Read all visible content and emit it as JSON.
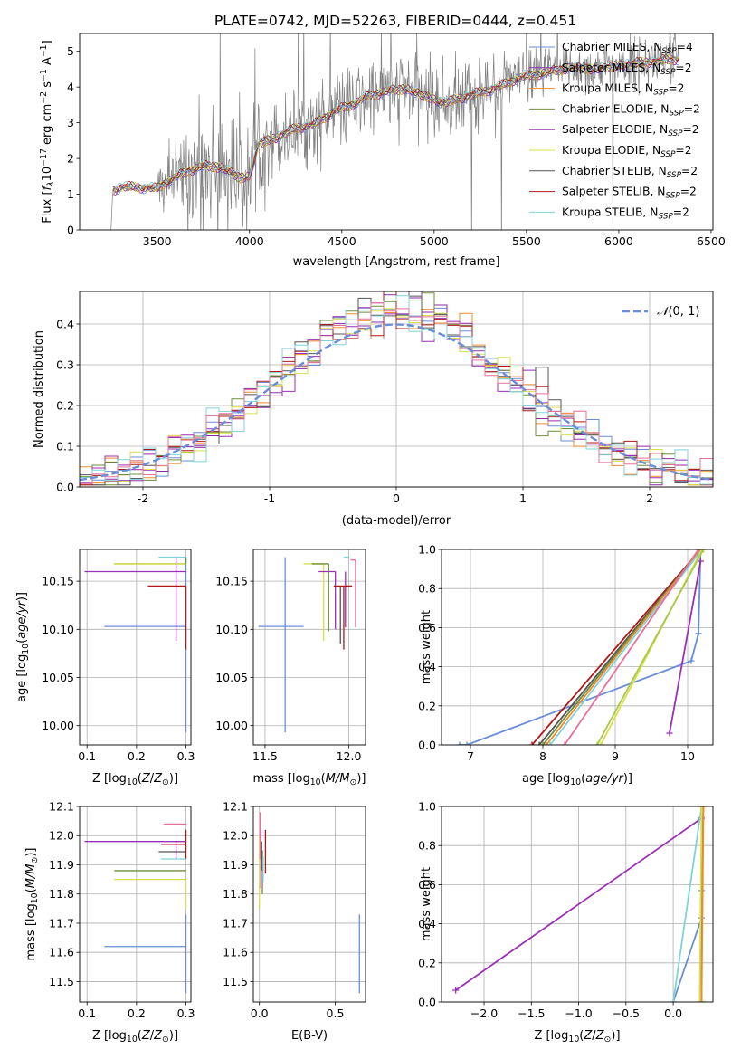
{
  "figure_title": "PLATE=0742, MJD=52263, FIBERID=0444, z=0.451",
  "colors": {
    "Chabrier MILES": "#6a8dd8",
    "Salpeter MILES": "#8c2aa6",
    "Kroupa MILES": "#f08a2c",
    "Chabrier ELODIE": "#6e8f3a",
    "Salpeter ELODIE": "#9b2fb5",
    "Kroupa ELODIE": "#d9e04a",
    "Chabrier STELIB": "#555555",
    "Salpeter STELIB": "#b01818",
    "Kroupa STELIB": "#7fd3d8",
    "pink": "#e8709a",
    "data": "#808080"
  },
  "chart_data": [
    {
      "id": "spectrum",
      "type": "line",
      "title": "PLATE=0742, MJD=52263, FIBERID=0444, z=0.451",
      "xlabel": "wavelength [Angstrom, rest frame]",
      "ylabel": "Flux [f_λ 10^-17 erg cm^-2 s^-1 A^-1]",
      "xlim": [
        3080,
        6510
      ],
      "ylim": [
        0,
        5.5
      ],
      "xticks": [
        3500,
        4000,
        4500,
        5000,
        5500,
        6000,
        6500
      ],
      "yticks": [
        0,
        1,
        2,
        3,
        4,
        5
      ],
      "legend_position": "top-right",
      "data_wavelength_range": [
        3260,
        6330
      ],
      "series": [
        {
          "name": "Chabrier MILES, N_SSP=4",
          "color": "#6a8dd8",
          "legend": [
            "Chabrier MILES, N",
            "SSP",
            "=4"
          ]
        },
        {
          "name": "Salpeter MILES, N_SSP=2",
          "color": "#8c2aa6",
          "legend": [
            "Salpeter MILES, N",
            "SSP",
            "=2"
          ]
        },
        {
          "name": "Kroupa MILES, N_SSP=2",
          "color": "#f08a2c",
          "legend": [
            "Kroupa MILES, N",
            "SSP",
            "=2"
          ]
        },
        {
          "name": "Chabrier ELODIE, N_SSP=2",
          "color": "#6e8f3a",
          "legend": [
            "Chabrier ELODIE, N",
            "SSP",
            "=2"
          ]
        },
        {
          "name": "Salpeter ELODIE, N_SSP=2",
          "color": "#9b2fb5",
          "legend": [
            "Salpeter ELODIE, N",
            "SSP",
            "=2"
          ]
        },
        {
          "name": "Kroupa ELODIE, N_SSP=2",
          "color": "#d9e04a",
          "legend": [
            "Kroupa ELODIE, N",
            "SSP",
            "=2"
          ]
        },
        {
          "name": "Chabrier STELIB, N_SSP=2",
          "color": "#555555",
          "legend": [
            "Chabrier STELIB, N",
            "SSP",
            "=2"
          ]
        },
        {
          "name": "Salpeter STELIB, N_SSP=2",
          "color": "#b01818",
          "legend": [
            "Salpeter STELIB, N",
            "SSP",
            "=2"
          ]
        },
        {
          "name": "Kroupa STELIB, N_SSP=2",
          "color": "#7fd3d8",
          "legend": [
            "Kroupa STELIB, N",
            "SSP",
            "=2"
          ]
        }
      ],
      "continuum": [
        [
          3250,
          0.0
        ],
        [
          3260,
          1.1
        ],
        [
          3300,
          1.2
        ],
        [
          3400,
          1.2
        ],
        [
          3500,
          1.15
        ],
        [
          3550,
          1.35
        ],
        [
          3650,
          1.6
        ],
        [
          3750,
          1.8
        ],
        [
          3850,
          1.75
        ],
        [
          3950,
          1.45
        ],
        [
          4000,
          1.5
        ],
        [
          4050,
          2.4
        ],
        [
          4150,
          2.6
        ],
        [
          4250,
          2.85
        ],
        [
          4350,
          2.95
        ],
        [
          4450,
          3.3
        ],
        [
          4550,
          3.5
        ],
        [
          4650,
          3.75
        ],
        [
          4750,
          3.9
        ],
        [
          4850,
          3.95
        ],
        [
          4950,
          3.75
        ],
        [
          5050,
          3.55
        ],
        [
          5150,
          3.7
        ],
        [
          5250,
          3.85
        ],
        [
          5350,
          4.0
        ],
        [
          5450,
          4.25
        ],
        [
          5550,
          4.35
        ],
        [
          5650,
          4.45
        ],
        [
          5750,
          4.55
        ],
        [
          5850,
          4.5
        ],
        [
          5950,
          4.55
        ],
        [
          6050,
          4.65
        ],
        [
          6150,
          4.7
        ],
        [
          6250,
          4.75
        ],
        [
          6330,
          4.8
        ]
      ]
    },
    {
      "id": "residuals",
      "type": "histogram",
      "xlabel": "(data-model)/error",
      "ylabel": "Normed distribution",
      "xlim": [
        -2.5,
        2.5
      ],
      "ylim": [
        0,
        0.48
      ],
      "xticks": [
        -2,
        -1,
        0,
        1,
        2
      ],
      "yticks": [
        0.0,
        0.1,
        0.2,
        0.3,
        0.4
      ],
      "grid": true,
      "legend_position": "top-right",
      "gaussian_label": "N(0,1)",
      "bin_width": 0.1,
      "series_colors": [
        "#6a8dd8",
        "#8c2aa6",
        "#f08a2c",
        "#6e8f3a",
        "#9b2fb5",
        "#d9e04a",
        "#555555",
        "#b01818",
        "#7fd3d8",
        "#e8709a"
      ]
    },
    {
      "id": "age_vs_Z",
      "type": "errorbar",
      "xlabel": "Z [log10(Z/Z⊙)]",
      "ylabel": "age [log10(age/yr)]",
      "xlim": [
        0.085,
        0.31
      ],
      "ylim": [
        9.98,
        10.183
      ],
      "xticks": [
        0.1,
        0.2,
        0.3
      ],
      "yticks": [
        10.0,
        10.05,
        10.1,
        10.15
      ],
      "grid": true,
      "points": [
        {
          "x": 0.3,
          "y": 10.103,
          "xerr": [
            0.165,
            0.0
          ],
          "yerr": [
            0.11,
            0.072
          ],
          "color": "#6a8dd8"
        },
        {
          "x": 0.3,
          "y": 10.16,
          "xerr": [
            0.205,
            0.0
          ],
          "yerr": [
            0.0,
            0.0
          ],
          "color": "#9b2fb5"
        },
        {
          "x": 0.28,
          "y": 10.16,
          "xerr": [
            0.0,
            0.0
          ],
          "yerr": [
            0.072,
            0.015
          ],
          "color": "#9b2fb5"
        },
        {
          "x": 0.3,
          "y": 10.145,
          "xerr": [
            0.077,
            0.0
          ],
          "yerr": [
            0.066,
            0.0
          ],
          "color": "#b01818"
        },
        {
          "x": 0.3,
          "y": 10.168,
          "xerr": [
            0.145,
            0.0
          ],
          "yerr": [
            0.0,
            0.007
          ],
          "color": "#6e8f3a"
        },
        {
          "x": 0.3,
          "y": 10.168,
          "xerr": [
            0.145,
            0.0
          ],
          "yerr": [
            0.0,
            0.0
          ],
          "color": "#d9e04a"
        },
        {
          "x": 0.3,
          "y": 10.175,
          "xerr": [
            0.055,
            0.0
          ],
          "yerr": [
            0.0,
            0.0
          ],
          "color": "#7fd3d8"
        },
        {
          "x": 0.3,
          "y": 10.172,
          "xerr": [
            0.0,
            0.0
          ],
          "yerr": [
            0.0,
            0.0
          ],
          "color": "#e8709a"
        }
      ]
    },
    {
      "id": "age_vs_mass",
      "type": "errorbar",
      "xlabel": "mass [log10(M/M⊙)]",
      "ylabel": "",
      "xlim": [
        11.43,
        12.1
      ],
      "ylim": [
        9.98,
        10.183
      ],
      "xticks": [
        11.5,
        12.0
      ],
      "yticks": [
        10.0,
        10.05,
        10.1,
        10.15
      ],
      "grid": true,
      "points": [
        {
          "x": 11.62,
          "y": 10.103,
          "xerr": [
            0.16,
            0.11
          ],
          "yerr": [
            0.11,
            0.072
          ],
          "color": "#6a8dd8"
        },
        {
          "x": 11.85,
          "y": 10.168,
          "xerr": [
            0.12,
            0.0
          ],
          "yerr": [
            0.08,
            0.0
          ],
          "color": "#d9e04a"
        },
        {
          "x": 11.88,
          "y": 10.168,
          "xerr": [
            0.1,
            0.0
          ],
          "yerr": [
            0.07,
            0.0
          ],
          "color": "#6e8f3a"
        },
        {
          "x": 11.92,
          "y": 10.16,
          "xerr": [
            0.1,
            0.0
          ],
          "yerr": [
            0.06,
            0.0
          ],
          "color": "#9b2fb5"
        },
        {
          "x": 11.98,
          "y": 10.16,
          "xerr": [
            0.0,
            0.0
          ],
          "yerr": [
            0.058,
            0.0
          ],
          "color": "#9b2fb5"
        },
        {
          "x": 11.97,
          "y": 10.145,
          "xerr": [
            0.06,
            0.05
          ],
          "yerr": [
            0.066,
            0.0
          ],
          "color": "#b01818"
        },
        {
          "x": 11.95,
          "y": 10.145,
          "xerr": [
            0.0,
            0.0
          ],
          "yerr": [
            0.06,
            0.0
          ],
          "color": "#555555"
        },
        {
          "x": 12.04,
          "y": 10.172,
          "xerr": [
            0.03,
            0.0
          ],
          "yerr": [
            0.07,
            0.0
          ],
          "color": "#e8709a"
        },
        {
          "x": 12.0,
          "y": 10.175,
          "xerr": [
            0.03,
            0.0
          ],
          "yerr": [
            0.0,
            0.0
          ],
          "color": "#7fd3d8"
        }
      ]
    },
    {
      "id": "massweight_vs_age",
      "type": "line",
      "xlabel": "age [log10(age/yr)]",
      "ylabel": "mass weight",
      "xlim": [
        6.6,
        10.35
      ],
      "ylim": [
        0,
        1.0
      ],
      "xticks": [
        7,
        8,
        9,
        10
      ],
      "yticks": [
        0.0,
        0.2,
        0.4,
        0.6,
        0.8,
        1.0
      ],
      "grid": true,
      "series": [
        {
          "color": "#6a8dd8",
          "x": [
            6.85,
            6.95,
            10.05,
            10.15,
            10.18
          ],
          "y": [
            0.0,
            0.0,
            0.43,
            0.57,
            1.0
          ]
        },
        {
          "color": "#9b2fb5",
          "x": [
            9.75,
            10.18
          ],
          "y": [
            0.06,
            0.94
          ]
        },
        {
          "color": "#b01818",
          "x": [
            7.85,
            10.18
          ],
          "y": [
            0.0,
            1.0
          ]
        },
        {
          "color": "#555555",
          "x": [
            7.95,
            10.18
          ],
          "y": [
            0.0,
            1.0
          ]
        },
        {
          "color": "#6e8f3a",
          "x": [
            8.0,
            10.18
          ],
          "y": [
            0.0,
            1.0
          ]
        },
        {
          "color": "#f08a2c",
          "x": [
            8.05,
            10.18
          ],
          "y": [
            0.0,
            1.0
          ]
        },
        {
          "color": "#7fd3d8",
          "x": [
            8.1,
            10.2
          ],
          "y": [
            0.0,
            1.0
          ]
        },
        {
          "color": "#e8709a",
          "x": [
            8.3,
            10.15
          ],
          "y": [
            0.0,
            1.0
          ]
        },
        {
          "color": "#d9e04a",
          "x": [
            8.8,
            10.2
          ],
          "y": [
            0.0,
            1.0
          ]
        },
        {
          "color": "#a7c94a",
          "x": [
            8.75,
            10.22
          ],
          "y": [
            0.0,
            1.0
          ]
        }
      ]
    },
    {
      "id": "mass_vs_Z",
      "type": "errorbar",
      "xlabel": "Z [log10(Z/Z⊙)]",
      "ylabel": "mass [log10(M/M⊙)]",
      "xlim": [
        0.085,
        0.31
      ],
      "ylim": [
        11.43,
        12.1
      ],
      "xticks": [
        0.1,
        0.2,
        0.3
      ],
      "yticks": [
        11.5,
        11.6,
        11.7,
        11.8,
        11.9,
        12.0,
        12.1
      ],
      "grid": true,
      "points": [
        {
          "x": 0.3,
          "y": 11.62,
          "xerr": [
            0.165,
            0.0
          ],
          "yerr": [
            0.16,
            0.11
          ],
          "color": "#6a8dd8"
        },
        {
          "x": 0.3,
          "y": 11.98,
          "xerr": [
            0.205,
            0.0
          ],
          "yerr": [
            0.0,
            0.0
          ],
          "color": "#9b2fb5"
        },
        {
          "x": 0.28,
          "y": 11.98,
          "xerr": [
            0.0,
            0.0
          ],
          "yerr": [
            0.06,
            0.0
          ],
          "color": "#9b2fb5"
        },
        {
          "x": 0.3,
          "y": 11.88,
          "xerr": [
            0.145,
            0.0
          ],
          "yerr": [
            0.0,
            0.0
          ],
          "color": "#6e8f3a"
        },
        {
          "x": 0.3,
          "y": 11.85,
          "xerr": [
            0.145,
            0.0
          ],
          "yerr": [
            0.1,
            0.0
          ],
          "color": "#d9e04a"
        },
        {
          "x": 0.3,
          "y": 11.945,
          "xerr": [
            0.055,
            0.0
          ],
          "yerr": [
            0.0,
            0.0
          ],
          "color": "#555555"
        },
        {
          "x": 0.3,
          "y": 11.97,
          "xerr": [
            0.05,
            0.0
          ],
          "yerr": [
            0.05,
            0.05
          ],
          "color": "#b01818"
        },
        {
          "x": 0.3,
          "y": 12.04,
          "xerr": [
            0.045,
            0.0
          ],
          "yerr": [
            0.0,
            0.0
          ],
          "color": "#e8709a"
        },
        {
          "x": 0.3,
          "y": 11.92,
          "xerr": [
            0.05,
            0.0
          ],
          "yerr": [
            0.0,
            0.0
          ],
          "color": "#7fd3d8"
        }
      ]
    },
    {
      "id": "mass_vs_EBV",
      "type": "errorbar",
      "xlabel": "E(B-V)",
      "ylabel": "",
      "xlim": [
        -0.04,
        0.7
      ],
      "ylim": [
        11.43,
        12.1
      ],
      "xticks": [
        0.0,
        0.5
      ],
      "yticks": [
        11.5,
        11.6,
        11.7,
        11.8,
        11.9,
        12.0,
        12.1
      ],
      "grid": true,
      "points": [
        {
          "x": 0.66,
          "y": 11.62,
          "xerr": [
            0.0,
            0.0
          ],
          "yerr": [
            0.16,
            0.11
          ],
          "color": "#6a8dd8"
        },
        {
          "x": 0.0,
          "y": 11.85,
          "xerr": [
            0.0,
            0.0
          ],
          "yerr": [
            0.1,
            0.15
          ],
          "color": "#d9e04a"
        },
        {
          "x": 0.02,
          "y": 11.88,
          "xerr": [
            0.0,
            0.0
          ],
          "yerr": [
            0.08,
            0.07
          ],
          "color": "#6e8f3a"
        },
        {
          "x": 0.04,
          "y": 11.95,
          "xerr": [
            0.0,
            0.0
          ],
          "yerr": [
            0.08,
            0.07
          ],
          "color": "#b01818"
        },
        {
          "x": 0.01,
          "y": 11.92,
          "xerr": [
            0.0,
            0.0
          ],
          "yerr": [
            0.1,
            0.1
          ],
          "color": "#9b2fb5"
        },
        {
          "x": 0.015,
          "y": 11.93,
          "xerr": [
            0.0,
            0.0
          ],
          "yerr": [
            0.05,
            0.05
          ],
          "color": "#555555"
        },
        {
          "x": 0.005,
          "y": 11.98,
          "xerr": [
            0.0,
            0.0
          ],
          "yerr": [
            0.06,
            0.1
          ],
          "color": "#e8709a"
        },
        {
          "x": 0.025,
          "y": 11.9,
          "xerr": [
            0.0,
            0.0
          ],
          "yerr": [
            0.06,
            0.03
          ],
          "color": "#7fd3d8"
        }
      ]
    },
    {
      "id": "massweight_vs_Z",
      "type": "line",
      "xlabel": "Z [log10(Z/Z⊙)]",
      "ylabel": "mass weight",
      "xlim": [
        -2.45,
        0.42
      ],
      "ylim": [
        0,
        1.0
      ],
      "xticks": [
        -2.0,
        -1.5,
        -1.0,
        -0.5,
        0.0
      ],
      "yticks": [
        0.0,
        0.2,
        0.4,
        0.6,
        0.8,
        1.0
      ],
      "grid": true,
      "series": [
        {
          "color": "#9b2fb5",
          "x": [
            -2.3,
            0.3
          ],
          "y": [
            0.06,
            0.94
          ]
        },
        {
          "color": "#6a8dd8",
          "x": [
            0.0,
            0.3,
            0.3,
            0.3
          ],
          "y": [
            0.0,
            0.43,
            0.57,
            1.0
          ]
        },
        {
          "color": "#7fd3d8",
          "x": [
            0.0,
            0.3
          ],
          "y": [
            0.0,
            1.0
          ]
        },
        {
          "color": "#6e8f3a",
          "x": [
            0.3,
            0.3
          ],
          "y": [
            0.0,
            1.0
          ]
        },
        {
          "color": "#d9e04a",
          "x": [
            0.28,
            0.3
          ],
          "y": [
            0.0,
            1.0
          ]
        },
        {
          "color": "#f08a2c",
          "x": [
            0.3,
            0.32
          ],
          "y": [
            0.0,
            1.0
          ]
        }
      ]
    }
  ]
}
